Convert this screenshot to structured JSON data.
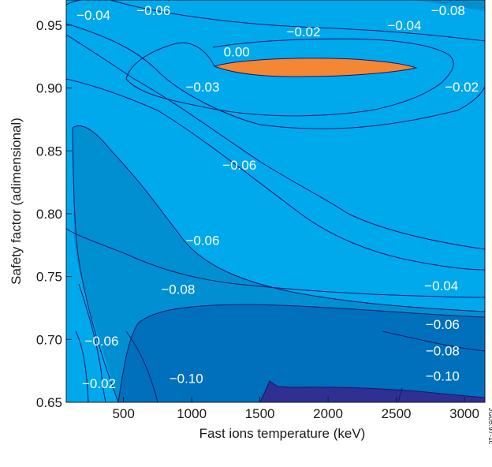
{
  "chart_data": {
    "type": "contour",
    "title": "",
    "xlabel": "Fast ions temperature (keV)",
    "ylabel": "Safety factor (adimensional)",
    "xlim": [
      80,
      3150
    ],
    "ylim": [
      0.65,
      0.97
    ],
    "x_ticks": [
      500,
      1000,
      1500,
      2000,
      2500,
      3000
    ],
    "x_tick_labels": [
      "500",
      "1000",
      "1500",
      "2000",
      "2500",
      "3000"
    ],
    "y_ticks": [
      0.65,
      0.7,
      0.75,
      0.8,
      0.85,
      0.9,
      0.95
    ],
    "y_tick_labels": [
      "0.65",
      "0.70",
      "0.75",
      "0.80",
      "0.85",
      "0.90",
      "0.95"
    ],
    "contour_labels": [
      {
        "text": "−0.04",
        "x": 280,
        "y": 0.958
      },
      {
        "text": "−0.06",
        "x": 720,
        "y": 0.962
      },
      {
        "text": "−0.08",
        "x": 2880,
        "y": 0.962
      },
      {
        "text": "−0.04",
        "x": 2560,
        "y": 0.95
      },
      {
        "text": "−0.02",
        "x": 1820,
        "y": 0.945
      },
      {
        "text": "0.00",
        "x": 1330,
        "y": 0.929
      },
      {
        "text": "−0.03",
        "x": 1080,
        "y": 0.901
      },
      {
        "text": "−0.02",
        "x": 2980,
        "y": 0.901
      },
      {
        "text": "−0.06",
        "x": 1350,
        "y": 0.839
      },
      {
        "text": "−0.06",
        "x": 1080,
        "y": 0.779
      },
      {
        "text": "−0.08",
        "x": 900,
        "y": 0.74
      },
      {
        "text": "−0.04",
        "x": 2830,
        "y": 0.743
      },
      {
        "text": "−0.06",
        "x": 2840,
        "y": 0.712
      },
      {
        "text": "−0.08",
        "x": 2840,
        "y": 0.691
      },
      {
        "text": "−0.06",
        "x": 340,
        "y": 0.699
      },
      {
        "text": "−0.10",
        "x": 960,
        "y": 0.669
      },
      {
        "text": "−0.10",
        "x": 2840,
        "y": 0.671
      },
      {
        "text": "−0.02",
        "x": 320,
        "y": 0.665
      }
    ],
    "grid": false,
    "legend": "none"
  },
  "figure_id": "JG05.97-1c",
  "colors": {
    "level_m02": "#00A9EC",
    "level_m06": "#0090D2",
    "level_m08": "#0070BC",
    "level_m10": "#2E3192",
    "level_pos": "#F58634",
    "contour_line": "#1B1464",
    "axis": "#1a1a1a"
  }
}
